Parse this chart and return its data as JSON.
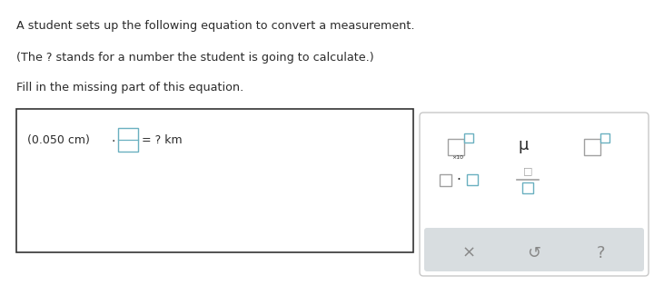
{
  "bg_color": "#ffffff",
  "text_color": "#2b2b2b",
  "line1": "A student sets up the following equation to convert a measurement.",
  "line2": "(The ? stands for a number the student is going to calculate.)",
  "line3": "Fill in the missing part of this equation.",
  "teal": "#6ab0c0",
  "teal_dark": "#4a9aaa",
  "gray_box": "#a0a0a0",
  "panel_bg": "#ffffff",
  "panel_border": "#c8c8c8",
  "gray_strip": "#d8dde0",
  "button_color": "#888888"
}
